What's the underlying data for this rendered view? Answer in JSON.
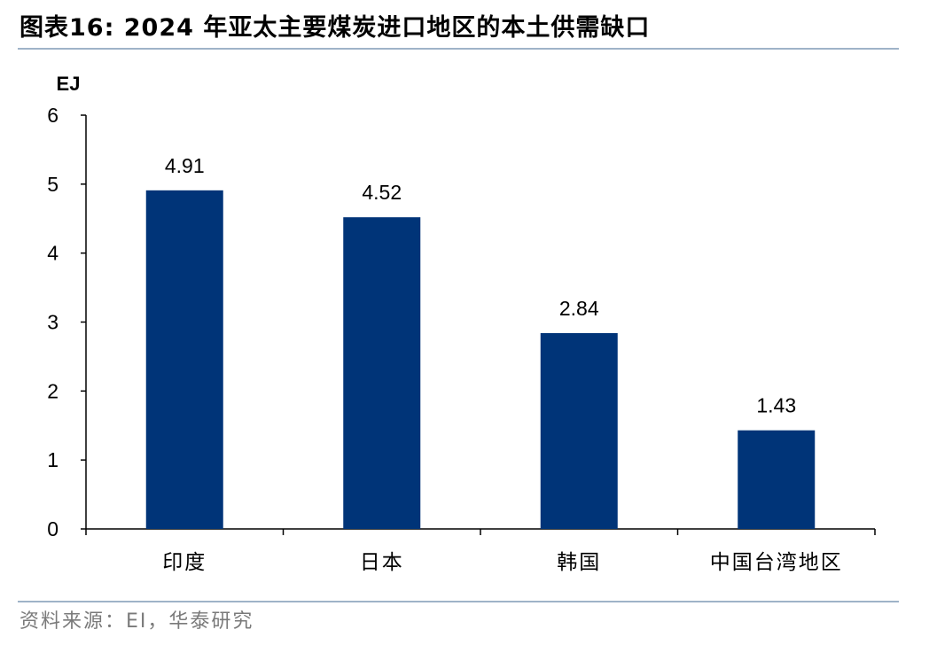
{
  "figure": {
    "title": "图表16:  2024 年亚太主要煤炭进口地区的本土供需缺口",
    "source": "资料来源：EI，华泰研究"
  },
  "colors": {
    "bar": "#003478",
    "rule": "#9fb3c8",
    "axis": "#000000",
    "source_text": "#7a7a7a"
  },
  "chart_data": {
    "type": "bar",
    "title": "",
    "ylabel": "EJ",
    "xlabel": "",
    "ylim": [
      0,
      6
    ],
    "yticks": [
      0,
      1,
      2,
      3,
      4,
      5,
      6
    ],
    "grid": false,
    "legend": "none",
    "categories": [
      "印度",
      "日本",
      "韩国",
      "中国台湾地区"
    ],
    "values": [
      4.91,
      4.52,
      2.84,
      1.43
    ],
    "data_labels": [
      "4.91",
      "4.52",
      "2.84",
      "1.43"
    ]
  }
}
